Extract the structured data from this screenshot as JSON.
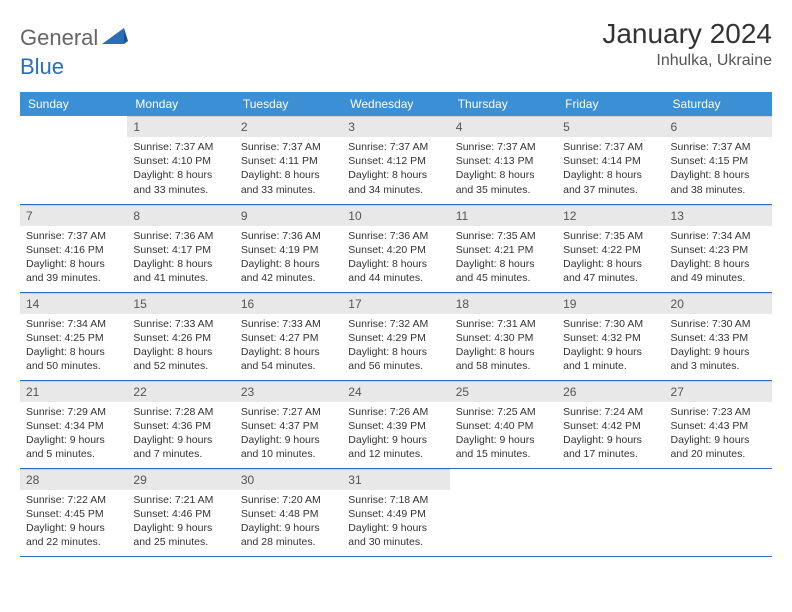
{
  "brand": {
    "part1": "General",
    "part2": "Blue"
  },
  "title": "January 2024",
  "location": "Inhulka, Ukraine",
  "colors": {
    "header_bg": "#3b8fd4",
    "header_fg": "#ffffff",
    "daynum_bg": "#e8e8e8",
    "row_border": "#2a6db8",
    "logo_blue": "#2a6db8",
    "text": "#333333"
  },
  "weekdays": [
    "Sunday",
    "Monday",
    "Tuesday",
    "Wednesday",
    "Thursday",
    "Friday",
    "Saturday"
  ],
  "weeks": [
    [
      {
        "empty": true
      },
      {
        "n": "1",
        "sr": "7:37 AM",
        "ss": "4:10 PM",
        "dl": "8 hours and 33 minutes."
      },
      {
        "n": "2",
        "sr": "7:37 AM",
        "ss": "4:11 PM",
        "dl": "8 hours and 33 minutes."
      },
      {
        "n": "3",
        "sr": "7:37 AM",
        "ss": "4:12 PM",
        "dl": "8 hours and 34 minutes."
      },
      {
        "n": "4",
        "sr": "7:37 AM",
        "ss": "4:13 PM",
        "dl": "8 hours and 35 minutes."
      },
      {
        "n": "5",
        "sr": "7:37 AM",
        "ss": "4:14 PM",
        "dl": "8 hours and 37 minutes."
      },
      {
        "n": "6",
        "sr": "7:37 AM",
        "ss": "4:15 PM",
        "dl": "8 hours and 38 minutes."
      }
    ],
    [
      {
        "n": "7",
        "sr": "7:37 AM",
        "ss": "4:16 PM",
        "dl": "8 hours and 39 minutes."
      },
      {
        "n": "8",
        "sr": "7:36 AM",
        "ss": "4:17 PM",
        "dl": "8 hours and 41 minutes."
      },
      {
        "n": "9",
        "sr": "7:36 AM",
        "ss": "4:19 PM",
        "dl": "8 hours and 42 minutes."
      },
      {
        "n": "10",
        "sr": "7:36 AM",
        "ss": "4:20 PM",
        "dl": "8 hours and 44 minutes."
      },
      {
        "n": "11",
        "sr": "7:35 AM",
        "ss": "4:21 PM",
        "dl": "8 hours and 45 minutes."
      },
      {
        "n": "12",
        "sr": "7:35 AM",
        "ss": "4:22 PM",
        "dl": "8 hours and 47 minutes."
      },
      {
        "n": "13",
        "sr": "7:34 AM",
        "ss": "4:23 PM",
        "dl": "8 hours and 49 minutes."
      }
    ],
    [
      {
        "n": "14",
        "sr": "7:34 AM",
        "ss": "4:25 PM",
        "dl": "8 hours and 50 minutes."
      },
      {
        "n": "15",
        "sr": "7:33 AM",
        "ss": "4:26 PM",
        "dl": "8 hours and 52 minutes."
      },
      {
        "n": "16",
        "sr": "7:33 AM",
        "ss": "4:27 PM",
        "dl": "8 hours and 54 minutes."
      },
      {
        "n": "17",
        "sr": "7:32 AM",
        "ss": "4:29 PM",
        "dl": "8 hours and 56 minutes."
      },
      {
        "n": "18",
        "sr": "7:31 AM",
        "ss": "4:30 PM",
        "dl": "8 hours and 58 minutes."
      },
      {
        "n": "19",
        "sr": "7:30 AM",
        "ss": "4:32 PM",
        "dl": "9 hours and 1 minute."
      },
      {
        "n": "20",
        "sr": "7:30 AM",
        "ss": "4:33 PM",
        "dl": "9 hours and 3 minutes."
      }
    ],
    [
      {
        "n": "21",
        "sr": "7:29 AM",
        "ss": "4:34 PM",
        "dl": "9 hours and 5 minutes."
      },
      {
        "n": "22",
        "sr": "7:28 AM",
        "ss": "4:36 PM",
        "dl": "9 hours and 7 minutes."
      },
      {
        "n": "23",
        "sr": "7:27 AM",
        "ss": "4:37 PM",
        "dl": "9 hours and 10 minutes."
      },
      {
        "n": "24",
        "sr": "7:26 AM",
        "ss": "4:39 PM",
        "dl": "9 hours and 12 minutes."
      },
      {
        "n": "25",
        "sr": "7:25 AM",
        "ss": "4:40 PM",
        "dl": "9 hours and 15 minutes."
      },
      {
        "n": "26",
        "sr": "7:24 AM",
        "ss": "4:42 PM",
        "dl": "9 hours and 17 minutes."
      },
      {
        "n": "27",
        "sr": "7:23 AM",
        "ss": "4:43 PM",
        "dl": "9 hours and 20 minutes."
      }
    ],
    [
      {
        "n": "28",
        "sr": "7:22 AM",
        "ss": "4:45 PM",
        "dl": "9 hours and 22 minutes."
      },
      {
        "n": "29",
        "sr": "7:21 AM",
        "ss": "4:46 PM",
        "dl": "9 hours and 25 minutes."
      },
      {
        "n": "30",
        "sr": "7:20 AM",
        "ss": "4:48 PM",
        "dl": "9 hours and 28 minutes."
      },
      {
        "n": "31",
        "sr": "7:18 AM",
        "ss": "4:49 PM",
        "dl": "9 hours and 30 minutes."
      },
      {
        "empty": true
      },
      {
        "empty": true
      },
      {
        "empty": true
      }
    ]
  ],
  "labels": {
    "sunrise": "Sunrise:",
    "sunset": "Sunset:",
    "daylight": "Daylight:"
  }
}
